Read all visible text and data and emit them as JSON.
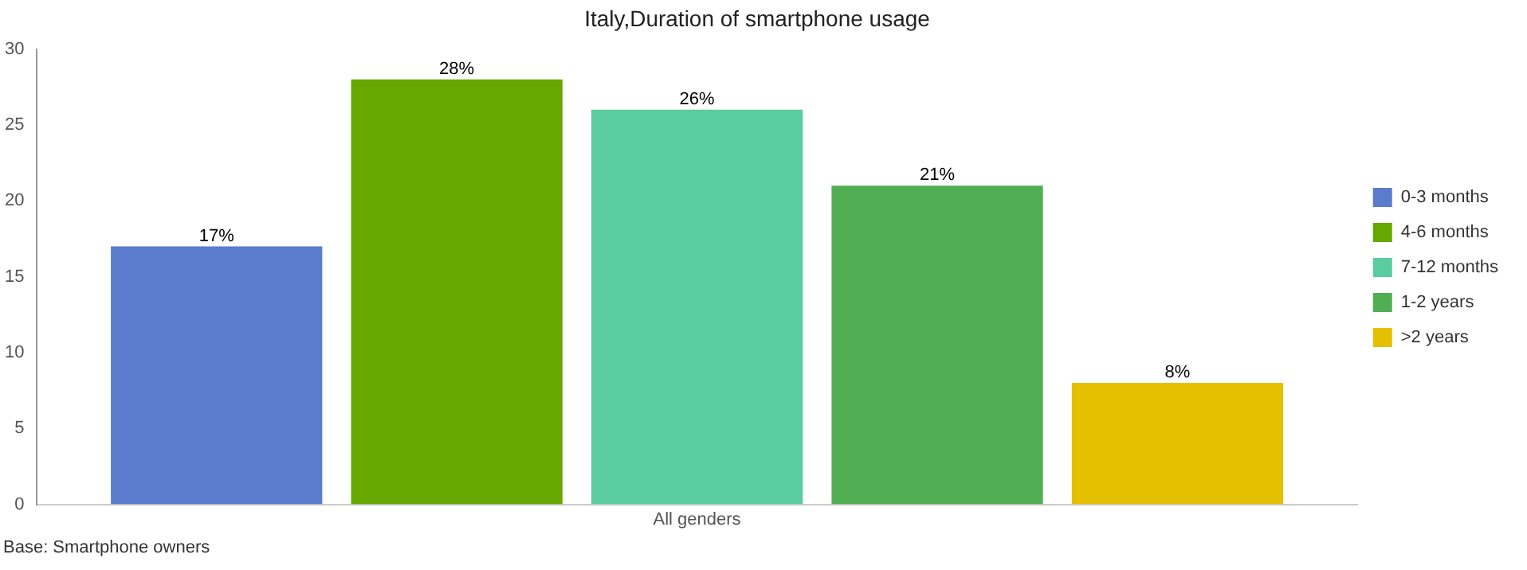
{
  "chart_data": {
    "type": "bar",
    "title": "Italy,Duration of smartphone usage",
    "categories": [
      "All genders"
    ],
    "series": [
      {
        "name": "0-3 months",
        "color": "#5b7ccc",
        "values": [
          17
        ],
        "value_labels": [
          "17%"
        ]
      },
      {
        "name": "4-6 months",
        "color": "#66a800",
        "values": [
          28
        ],
        "value_labels": [
          "28%"
        ]
      },
      {
        "name": "7-12 months",
        "color": "#5bcba0",
        "values": [
          26
        ],
        "value_labels": [
          "26%"
        ]
      },
      {
        "name": "1-2 years",
        "color": "#52ae52",
        "values": [
          21
        ],
        "value_labels": [
          "21%"
        ]
      },
      {
        "name": ">2 years",
        "color": "#e5c000",
        "values": [
          8
        ],
        "value_labels": [
          "8%"
        ]
      }
    ],
    "ylim": [
      0,
      30
    ],
    "yticks": [
      0,
      5,
      10,
      15,
      20,
      25,
      30
    ],
    "grid": false,
    "legend": "right",
    "annotations": [
      "Base:  Smartphone owners"
    ]
  }
}
